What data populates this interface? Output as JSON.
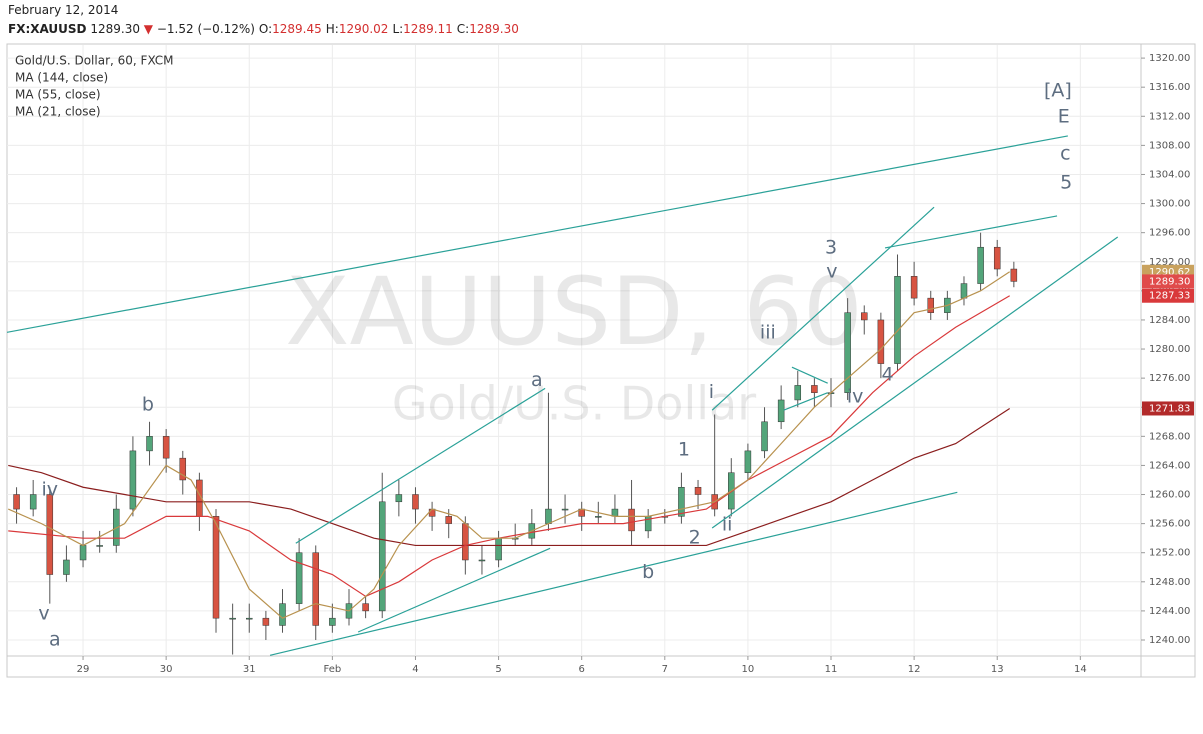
{
  "header": {
    "date": "February 12, 2014",
    "symbol": "FX:XAUUSD",
    "last": "1289.30",
    "change_arrow": "▼",
    "change": "−1.52 (−0.12%)",
    "ohlc": [
      {
        "label": "O:",
        "value": "1289.45"
      },
      {
        "label": "H:",
        "value": "1290.02"
      },
      {
        "label": "L:",
        "value": "1289.11"
      },
      {
        "label": "C:",
        "value": "1289.30"
      }
    ]
  },
  "chart_data": {
    "type": "candlestick",
    "title": "Gold/U.S. Dollar, 60, FXCM",
    "watermark": [
      "XAUUSD, 60",
      "Gold/U.S. Dollar"
    ],
    "up_color": "#53a57a",
    "down_color": "#d75442",
    "wick_color": "#555555",
    "grid": true,
    "x": [
      0.2,
      0.4,
      0.6,
      0.8,
      1.0,
      1.2,
      1.4,
      1.6,
      1.8,
      2.0,
      2.2,
      2.4,
      2.6,
      2.8,
      3.0,
      3.2,
      3.4,
      3.6,
      3.8,
      4.0,
      4.2,
      4.4,
      4.6,
      4.8,
      5.0,
      5.2,
      5.4,
      5.6,
      5.8,
      6.0,
      6.2,
      6.4,
      6.6,
      6.8,
      7.0,
      7.2,
      7.4,
      7.6,
      7.8,
      8.0,
      8.2,
      8.4,
      8.6,
      8.8,
      9.0,
      9.2,
      9.4,
      9.6,
      9.8,
      10.0,
      10.2,
      10.4,
      10.6,
      10.8,
      11.0,
      11.2,
      11.4,
      11.6,
      11.8,
      12.0,
      12.2
    ],
    "open": [
      1260,
      1258,
      1260,
      1249,
      1251,
      1253,
      1253,
      1258,
      1266,
      1268,
      1265,
      1262,
      1257,
      1243,
      1243,
      1243,
      1242,
      1245,
      1252,
      1242,
      1243,
      1245,
      1244,
      1259,
      1260,
      1258,
      1257,
      1256,
      1251,
      1251,
      1254,
      1254,
      1256,
      1258,
      1258,
      1257,
      1257,
      1258,
      1255,
      1257,
      1257,
      1261,
      1260,
      1258,
      1263,
      1266,
      1270,
      1273,
      1275,
      1274,
      1274,
      1285,
      1284,
      1278,
      1290,
      1287,
      1285,
      1287,
      1289,
      1294,
      1291
    ],
    "high": [
      1261,
      1262,
      1261,
      1253,
      1255,
      1255,
      1260,
      1268,
      1270,
      1269,
      1266,
      1263,
      1258,
      1245,
      1245,
      1244,
      1247,
      1254,
      1253,
      1245,
      1247,
      1246,
      1263,
      1262,
      1261,
      1259,
      1258,
      1257,
      1253,
      1255,
      1256,
      1258,
      1274,
      1260,
      1259,
      1259,
      1260,
      1262,
      1258,
      1258,
      1263,
      1262,
      1271,
      1265,
      1267,
      1272,
      1275,
      1277,
      1276,
      1276,
      1287,
      1286,
      1285,
      1293,
      1292,
      1288,
      1288,
      1290,
      1296,
      1295,
      1292
    ],
    "low": [
      1256,
      1257,
      1245,
      1248,
      1250,
      1252,
      1252,
      1257,
      1264,
      1263,
      1260,
      1255,
      1241,
      1238,
      1241,
      1240,
      1241,
      1244,
      1240,
      1241,
      1242,
      1243,
      1243,
      1257,
      1256,
      1255,
      1254,
      1249,
      1249,
      1250,
      1253,
      1253,
      1255,
      1256,
      1255,
      1256,
      1256,
      1253,
      1254,
      1256,
      1256,
      1258,
      1257,
      1257,
      1262,
      1265,
      1269,
      1272,
      1272,
      1272,
      1273,
      1282,
      1276,
      1277,
      1286,
      1284,
      1284,
      1286,
      1288,
      1290,
      1288.5
    ],
    "close": [
      1258,
      1260,
      1249,
      1251,
      1253,
      1253,
      1258,
      1266,
      1268,
      1265,
      1262,
      1257,
      1243,
      1243,
      1243,
      1242,
      1245,
      1252,
      1242,
      1243,
      1245,
      1244,
      1259,
      1260,
      1258,
      1257,
      1256,
      1251,
      1251,
      1254,
      1254,
      1256,
      1258,
      1258,
      1257,
      1257,
      1258,
      1255,
      1257,
      1257,
      1261,
      1260,
      1258,
      1263,
      1266,
      1270,
      1273,
      1275,
      1274,
      1274,
      1285,
      1284,
      1278,
      1290,
      1287,
      1285,
      1287,
      1289,
      1294,
      1291,
      1289.3
    ],
    "series": [
      {
        "name": "MA (144, close)",
        "color": "#8b1e1e",
        "x": [
          0.1,
          0.5,
          1.0,
          1.5,
          2.0,
          2.5,
          3.0,
          3.5,
          4.0,
          4.5,
          5.0,
          5.5,
          6.0,
          6.5,
          7.0,
          7.5,
          8.0,
          8.5,
          9.0,
          9.5,
          10.0,
          10.5,
          11.0,
          11.5,
          12.15
        ],
        "values": [
          1264,
          1263,
          1261,
          1260,
          1259,
          1259,
          1259,
          1258,
          1256,
          1254,
          1253,
          1253,
          1253,
          1253,
          1253,
          1253,
          1253,
          1253,
          1255,
          1257,
          1259,
          1262,
          1265,
          1267,
          1271.83
        ]
      },
      {
        "name": "MA (55, close)",
        "color": "#d9393b",
        "x": [
          0.1,
          1.0,
          1.5,
          2.0,
          2.5,
          3.0,
          3.5,
          4.0,
          4.4,
          4.8,
          5.2,
          5.6,
          6.0,
          6.5,
          7.0,
          7.5,
          8.0,
          8.5,
          9.0,
          9.5,
          10.0,
          10.5,
          11.0,
          11.5,
          12.15
        ],
        "values": [
          1255,
          1254,
          1254,
          1257,
          1257,
          1255,
          1251,
          1249,
          1246,
          1248,
          1251,
          1253,
          1254,
          1255,
          1256,
          1256,
          1257,
          1258,
          1262,
          1265,
          1268,
          1274,
          1279,
          1283,
          1287.33
        ]
      },
      {
        "name": "MA (21, close)",
        "color": "#b8924f",
        "x": [
          0.1,
          0.5,
          1.0,
          1.5,
          2.0,
          2.3,
          2.6,
          3.0,
          3.4,
          3.8,
          4.2,
          4.5,
          4.8,
          5.2,
          5.5,
          5.8,
          6.2,
          6.6,
          7.0,
          7.4,
          7.8,
          8.2,
          8.6,
          9.0,
          9.4,
          9.8,
          10.2,
          10.6,
          11.0,
          11.4,
          11.8,
          12.15
        ],
        "values": [
          1258,
          1256,
          1253,
          1256,
          1264,
          1262,
          1256,
          1247,
          1243,
          1245,
          1244,
          1247,
          1253,
          1258,
          1257,
          1254,
          1254,
          1256,
          1258,
          1257,
          1257,
          1258,
          1259,
          1262,
          1267,
          1272,
          1276,
          1280,
          1285,
          1286,
          1288,
          1290.62
        ]
      }
    ],
    "trendline_color": "#2aa198",
    "trendlines": [
      {
        "x": [
          0.085,
          12.85
        ],
        "y": [
          1282.3,
          1309.3
        ]
      },
      {
        "x": [
          3.56,
          6.56
        ],
        "y": [
          1253.3,
          1274.6
        ]
      },
      {
        "x": [
          3.25,
          11.52
        ],
        "y": [
          1237.9,
          1260.3
        ]
      },
      {
        "x": [
          4.31,
          6.62
        ],
        "y": [
          1241.1,
          1252.6
        ]
      },
      {
        "x": [
          8.57,
          11.24
        ],
        "y": [
          1271.6,
          1299.5
        ]
      },
      {
        "x": [
          8.57,
          13.45
        ],
        "y": [
          1255.4,
          1295.4
        ]
      },
      {
        "x": [
          10.65,
          12.72
        ],
        "y": [
          1293.9,
          1298.3
        ]
      },
      {
        "x": [
          9.53,
          9.96
        ],
        "y": [
          1277.5,
          1275.3
        ]
      },
      {
        "x": [
          9.43,
          9.96
        ],
        "y": [
          1271.6,
          1274.0
        ]
      }
    ],
    "annotation_color": "#5d6d80",
    "annotations": [
      {
        "text": "iv",
        "x": 0.6,
        "y": 1260.6
      },
      {
        "text": "v",
        "x": 0.53,
        "y": 1243.6
      },
      {
        "text": "a",
        "x": 0.66,
        "y": 1240
      },
      {
        "text": "b",
        "x": 1.78,
        "y": 1272.3
      },
      {
        "text": "a",
        "x": 6.46,
        "y": 1275.7
      },
      {
        "text": "b",
        "x": 7.8,
        "y": 1249.3
      },
      {
        "text": "1",
        "x": 8.23,
        "y": 1266.1
      },
      {
        "text": "2",
        "x": 8.36,
        "y": 1254
      },
      {
        "text": "i",
        "x": 8.56,
        "y": 1274
      },
      {
        "text": "ii",
        "x": 8.75,
        "y": 1255.8
      },
      {
        "text": "iii",
        "x": 9.24,
        "y": 1282.2
      },
      {
        "text": "3",
        "x": 10.0,
        "y": 1293.9
      },
      {
        "text": "v",
        "x": 10.01,
        "y": 1290.6
      },
      {
        "text": "iv",
        "x": 10.29,
        "y": 1273.4
      },
      {
        "text": "4",
        "x": 10.68,
        "y": 1276.4
      },
      {
        "text": "[A]",
        "x": 12.73,
        "y": 1315.5
      },
      {
        "text": "E",
        "x": 12.8,
        "y": 1311.9
      },
      {
        "text": "c",
        "x": 12.82,
        "y": 1306.8
      },
      {
        "text": "5",
        "x": 12.83,
        "y": 1302.8
      }
    ],
    "price_labels": [
      {
        "value": 1290.62,
        "label": "1290.62",
        "color": "#c9a25e"
      },
      {
        "value": 1289.3,
        "label": "1289.30",
        "color": "#e04b4b"
      },
      {
        "value": 1287.33,
        "label": "1287.33",
        "color": "#d9393b"
      },
      {
        "value": 1271.83,
        "label": "1271.83",
        "color": "#b22a2a"
      }
    ],
    "xlim": [
      0.085,
      13.73
    ],
    "xticks": [
      {
        "value": 1,
        "label": "29"
      },
      {
        "value": 2,
        "label": "30"
      },
      {
        "value": 3,
        "label": "31"
      },
      {
        "value": 4,
        "label": "Feb"
      },
      {
        "value": 5,
        "label": "4"
      },
      {
        "value": 6,
        "label": "5"
      },
      {
        "value": 7,
        "label": "6"
      },
      {
        "value": 8,
        "label": "7"
      },
      {
        "value": 9,
        "label": "10"
      },
      {
        "value": 10,
        "label": "11"
      },
      {
        "value": 11,
        "label": "12"
      },
      {
        "value": 12,
        "label": "13"
      },
      {
        "value": 13,
        "label": "14"
      }
    ],
    "ylim": [
      1237.8,
      1321.8
    ],
    "yticks": [
      {
        "value": 1240,
        "label": "1240.00"
      },
      {
        "value": 1244,
        "label": "1244.00"
      },
      {
        "value": 1248,
        "label": "1248.00"
      },
      {
        "value": 1252,
        "label": "1252.00"
      },
      {
        "value": 1256,
        "label": "1256.00"
      },
      {
        "value": 1260,
        "label": "1260.00"
      },
      {
        "value": 1264,
        "label": "1264.00"
      },
      {
        "value": 1268,
        "label": "1268.00"
      },
      {
        "value": 1272,
        "label": "1272.00"
      },
      {
        "value": 1276,
        "label": "1276.00"
      },
      {
        "value": 1280,
        "label": "1280.00"
      },
      {
        "value": 1284,
        "label": "1284.00"
      },
      {
        "value": 1288,
        "label": "1288.00"
      },
      {
        "value": 1292,
        "label": "1292.00"
      },
      {
        "value": 1296,
        "label": "1296.00"
      },
      {
        "value": 1300,
        "label": "1300.00"
      },
      {
        "value": 1304,
        "label": "1304.00"
      },
      {
        "value": 1308,
        "label": "1308.00"
      },
      {
        "value": 1312,
        "label": "1312.00"
      },
      {
        "value": 1316,
        "label": "1316.00"
      },
      {
        "value": 1320,
        "label": "1320.00"
      }
    ]
  }
}
